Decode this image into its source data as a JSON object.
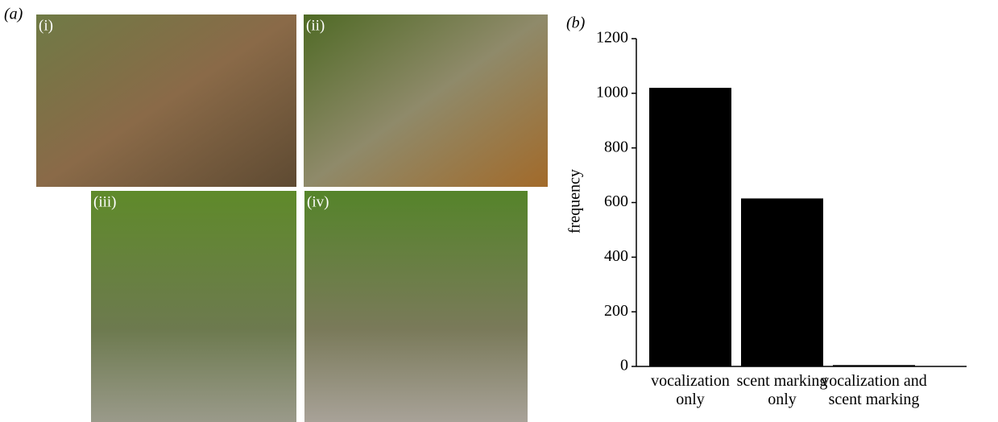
{
  "panels": {
    "a": "(a)",
    "b": "(b)",
    "photo_labels": [
      "(i)",
      "(ii)",
      "(iii)",
      "(iv)"
    ]
  },
  "chart_data": {
    "type": "bar",
    "ylabel": "frequency",
    "categories": [
      "vocalization\nonly",
      "scent marking\nonly",
      "vocalization and\nscent marking"
    ],
    "values": [
      1020,
      615,
      5
    ],
    "color": "#000000",
    "ylim": [
      0,
      1200
    ],
    "yticks": [
      0,
      200,
      400,
      600,
      800,
      1000,
      1200
    ]
  }
}
